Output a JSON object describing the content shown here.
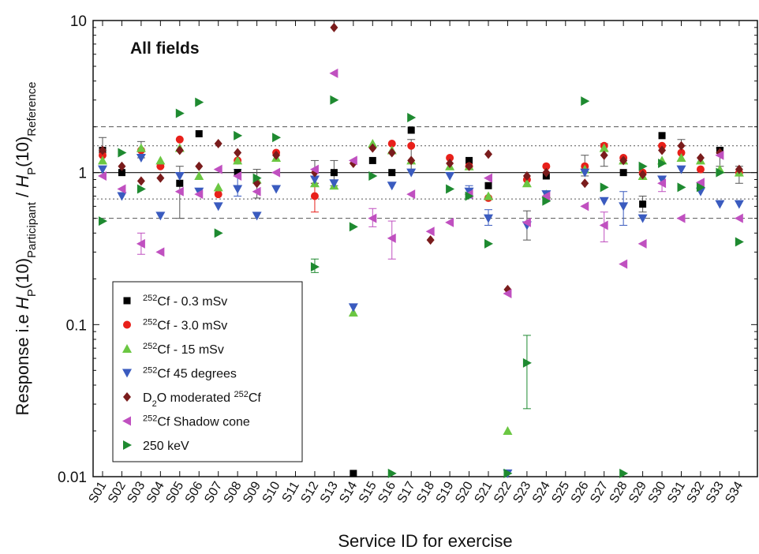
{
  "chart_data": {
    "type": "scatter",
    "title": "All fields",
    "xlabel": "Service ID for exercise",
    "ylabel_parts": [
      "Response i.e ",
      "H",
      "P",
      "(10)",
      "Participant",
      " / ",
      "H",
      "P",
      "(10)",
      "Reference"
    ],
    "yscale": "log",
    "ylim": [
      0.01,
      10
    ],
    "yticks": [
      {
        "v": 0.01,
        "label": "0.01"
      },
      {
        "v": 0.1,
        "label": "0.1"
      },
      {
        "v": 1,
        "label": "1"
      },
      {
        "v": 10,
        "label": "10"
      }
    ],
    "categories": [
      "S01",
      "S02",
      "S03",
      "S04",
      "S05",
      "S06",
      "S07",
      "S08",
      "S09",
      "S10",
      "S11",
      "S12",
      "S13",
      "S14",
      "S15",
      "S16",
      "S17",
      "S18",
      "S19",
      "S20",
      "S21",
      "S22",
      "S23",
      "S24",
      "S25",
      "S26",
      "S27",
      "S28",
      "S29",
      "S30",
      "S31",
      "S32",
      "S33",
      "S34"
    ],
    "reference_lines": [
      {
        "y": 1,
        "style": "solid"
      },
      {
        "y": 1.5,
        "style": "dotted"
      },
      {
        "y": 0.67,
        "style": "dotted"
      },
      {
        "y": 2,
        "style": "dashed"
      },
      {
        "y": 0.5,
        "style": "dashed"
      }
    ],
    "legend_position": "bottom-left",
    "series": [
      {
        "label_sup": "252",
        "label": "Cf  - 0.3 mSv",
        "color": "#000000",
        "marker": "square",
        "offset": 0,
        "points": [
          [
            "S01",
            1.4
          ],
          [
            "S02",
            1.0
          ],
          [
            "S05",
            0.85
          ],
          [
            "S06",
            1.8
          ],
          [
            "S08",
            1.0
          ],
          [
            "S13",
            1.0
          ],
          [
            "S14",
            0.0105
          ],
          [
            "S15",
            1.2
          ],
          [
            "S16",
            1.0
          ],
          [
            "S17",
            1.9
          ],
          [
            "S20",
            1.2
          ],
          [
            "S21",
            0.82
          ],
          [
            "S24",
            0.95
          ],
          [
            "S28",
            1.0
          ],
          [
            "S29",
            0.62
          ],
          [
            "S30",
            1.75
          ],
          [
            "S33",
            1.4
          ]
        ]
      },
      {
        "label_sup": "252",
        "label": "Cf - 3.0 mSv",
        "color": "#e8201a",
        "marker": "circle",
        "offset": 0,
        "points": [
          [
            "S01",
            1.3
          ],
          [
            "S03",
            1.4
          ],
          [
            "S04",
            1.1
          ],
          [
            "S05",
            1.65
          ],
          [
            "S07",
            0.72
          ],
          [
            "S08",
            1.2
          ],
          [
            "S10",
            1.35
          ],
          [
            "S12",
            0.7
          ],
          [
            "S16",
            1.55
          ],
          [
            "S17",
            1.5
          ],
          [
            "S19",
            1.25
          ],
          [
            "S20",
            1.1
          ],
          [
            "S21",
            0.68
          ],
          [
            "S23",
            0.9
          ],
          [
            "S24",
            1.1
          ],
          [
            "S26",
            1.1
          ],
          [
            "S27",
            1.5
          ],
          [
            "S28",
            1.25
          ],
          [
            "S29",
            1.0
          ],
          [
            "S30",
            1.5
          ],
          [
            "S31",
            1.35
          ],
          [
            "S32",
            1.05
          ],
          [
            "S34",
            1.0
          ]
        ]
      },
      {
        "label_sup": "252",
        "label": "Cf - 15 mSv",
        "color": "#6bc742",
        "marker": "triangle-up",
        "offset": 0,
        "points": [
          [
            "S01",
            1.2
          ],
          [
            "S03",
            1.45
          ],
          [
            "S04",
            1.2
          ],
          [
            "S05",
            1.45
          ],
          [
            "S06",
            0.95
          ],
          [
            "S07",
            0.8
          ],
          [
            "S08",
            1.2
          ],
          [
            "S09",
            0.9
          ],
          [
            "S10",
            1.25
          ],
          [
            "S12",
            0.85
          ],
          [
            "S13",
            0.82
          ],
          [
            "S14",
            0.12
          ],
          [
            "S15",
            1.55
          ],
          [
            "S16",
            1.4
          ],
          [
            "S17",
            1.2
          ],
          [
            "S19",
            1.1
          ],
          [
            "S20",
            1.1
          ],
          [
            "S21",
            0.7
          ],
          [
            "S22",
            0.02
          ],
          [
            "S23",
            0.85
          ],
          [
            "S24",
            0.72
          ],
          [
            "S26",
            1.05
          ],
          [
            "S27",
            1.45
          ],
          [
            "S28",
            1.2
          ],
          [
            "S29",
            0.95
          ],
          [
            "S30",
            1.2
          ],
          [
            "S31",
            1.25
          ],
          [
            "S32",
            1.2
          ],
          [
            "S33",
            1.05
          ],
          [
            "S34",
            1.0
          ]
        ]
      },
      {
        "label_sup": "252",
        "label": "Cf 45 degrees",
        "color": "#3a5bbf",
        "marker": "triangle-down",
        "offset": 0,
        "points": [
          [
            "S01",
            1.05
          ],
          [
            "S02",
            0.7
          ],
          [
            "S03",
            1.25
          ],
          [
            "S04",
            0.52
          ],
          [
            "S05",
            0.95
          ],
          [
            "S06",
            0.75
          ],
          [
            "S07",
            0.6
          ],
          [
            "S08",
            0.78
          ],
          [
            "S09",
            0.52
          ],
          [
            "S10",
            0.78
          ],
          [
            "S12",
            0.9
          ],
          [
            "S13",
            0.85
          ],
          [
            "S14",
            0.13
          ],
          [
            "S16",
            0.82
          ],
          [
            "S17",
            1.0
          ],
          [
            "S19",
            0.95
          ],
          [
            "S20",
            0.75
          ],
          [
            "S21",
            0.5
          ],
          [
            "S22",
            0.0105
          ],
          [
            "S23",
            0.45
          ],
          [
            "S24",
            0.72
          ],
          [
            "S26",
            1.0
          ],
          [
            "S27",
            0.65
          ],
          [
            "S28",
            0.6
          ],
          [
            "S29",
            0.5
          ],
          [
            "S30",
            0.9
          ],
          [
            "S31",
            1.05
          ],
          [
            "S32",
            0.75
          ],
          [
            "S33",
            0.62
          ],
          [
            "S34",
            0.62
          ]
        ]
      },
      {
        "label_sup": "",
        "label": "D2O moderated 252Cf",
        "color": "#7a1c1c",
        "marker": "diamond",
        "offset": 0,
        "points": [
          [
            "S01",
            1.4
          ],
          [
            "S02",
            1.1
          ],
          [
            "S03",
            0.88
          ],
          [
            "S04",
            0.92
          ],
          [
            "S05",
            1.4
          ],
          [
            "S06",
            1.1
          ],
          [
            "S07",
            1.55
          ],
          [
            "S08",
            1.35
          ],
          [
            "S09",
            0.85
          ],
          [
            "S10",
            1.3
          ],
          [
            "S12",
            1.0
          ],
          [
            "S13",
            9.0
          ],
          [
            "S14",
            1.15
          ],
          [
            "S15",
            1.45
          ],
          [
            "S16",
            1.35
          ],
          [
            "S17",
            1.2
          ],
          [
            "S18",
            0.36
          ],
          [
            "S19",
            1.15
          ],
          [
            "S20",
            1.1
          ],
          [
            "S21",
            1.32
          ],
          [
            "S22",
            0.17
          ],
          [
            "S23",
            0.95
          ],
          [
            "S24",
            1.0
          ],
          [
            "S26",
            0.85
          ],
          [
            "S27",
            1.3
          ],
          [
            "S28",
            1.2
          ],
          [
            "S29",
            0.97
          ],
          [
            "S30",
            1.4
          ],
          [
            "S31",
            1.5
          ],
          [
            "S32",
            1.25
          ],
          [
            "S33",
            1.35
          ],
          [
            "S34",
            1.05
          ]
        ]
      },
      {
        "label_sup": "252",
        "label": "Cf Shadow cone",
        "color": "#c050c0",
        "marker": "triangle-left",
        "offset": 0,
        "points": [
          [
            "S01",
            0.95
          ],
          [
            "S02",
            0.78
          ],
          [
            "S03",
            0.34
          ],
          [
            "S04",
            0.3
          ],
          [
            "S05",
            0.75
          ],
          [
            "S06",
            0.72
          ],
          [
            "S07",
            1.05
          ],
          [
            "S08",
            0.95
          ],
          [
            "S09",
            0.75
          ],
          [
            "S10",
            1.0
          ],
          [
            "S12",
            1.05
          ],
          [
            "S13",
            4.5
          ],
          [
            "S14",
            1.2
          ],
          [
            "S15",
            0.5
          ],
          [
            "S16",
            0.37
          ],
          [
            "S17",
            0.72
          ],
          [
            "S18",
            0.41
          ],
          [
            "S19",
            0.47
          ],
          [
            "S20",
            0.72
          ],
          [
            "S21",
            0.92
          ],
          [
            "S22",
            0.16
          ],
          [
            "S23",
            0.47
          ],
          [
            "S24",
            0.7
          ],
          [
            "S26",
            0.6
          ],
          [
            "S27",
            0.45
          ],
          [
            "S28",
            0.25
          ],
          [
            "S29",
            0.34
          ],
          [
            "S30",
            0.85
          ],
          [
            "S31",
            0.5
          ],
          [
            "S32",
            0.86
          ],
          [
            "S33",
            1.3
          ],
          [
            "S34",
            0.5
          ]
        ]
      },
      {
        "label_sup": "",
        "label": "250 keV",
        "color": "#1e8a30",
        "marker": "triangle-right",
        "offset": 0,
        "points": [
          [
            "S01",
            0.48
          ],
          [
            "S02",
            1.35
          ],
          [
            "S03",
            0.78
          ],
          [
            "S05",
            2.45
          ],
          [
            "S06",
            2.9
          ],
          [
            "S07",
            0.4
          ],
          [
            "S08",
            1.75
          ],
          [
            "S09",
            0.92
          ],
          [
            "S10",
            1.7
          ],
          [
            "S12",
            0.24
          ],
          [
            "S13",
            3.0
          ],
          [
            "S14",
            0.44
          ],
          [
            "S15",
            0.95
          ],
          [
            "S16",
            0.0105
          ],
          [
            "S17",
            2.3
          ],
          [
            "S19",
            0.78
          ],
          [
            "S20",
            0.7
          ],
          [
            "S21",
            0.34
          ],
          [
            "S22",
            0.0105
          ],
          [
            "S23",
            0.056
          ],
          [
            "S24",
            0.65
          ],
          [
            "S26",
            2.95
          ],
          [
            "S27",
            0.8
          ],
          [
            "S28",
            0.0105
          ],
          [
            "S29",
            1.1
          ],
          [
            "S30",
            1.15
          ],
          [
            "S31",
            0.8
          ],
          [
            "S32",
            0.8
          ],
          [
            "S33",
            1.0
          ],
          [
            "S34",
            0.35
          ]
        ]
      }
    ],
    "legend_items": [
      {
        "sup": "252",
        "text": "Cf  - 0.3 mSv"
      },
      {
        "sup": "252",
        "text": "Cf - 3.0 mSv"
      },
      {
        "sup": "252",
        "text": "Cf - 15 mSv"
      },
      {
        "sup": "252",
        "text": "Cf 45 degrees"
      },
      {
        "pre": "D",
        "sub": "2",
        "mid": "O moderated ",
        "sup": "252",
        "text": "Cf"
      },
      {
        "sup": "252",
        "text": "Cf Shadow cone"
      },
      {
        "text": "250 keV"
      }
    ],
    "error_bars": [
      {
        "cat": "S01",
        "y": 1.4,
        "lo": 1.15,
        "hi": 1.7,
        "color": "#555555"
      },
      {
        "cat": "S03",
        "y": 1.4,
        "lo": 1.25,
        "hi": 1.6,
        "color": "#555555"
      },
      {
        "cat": "S03",
        "y": 0.34,
        "lo": 0.29,
        "hi": 0.4,
        "color": "#c050c0"
      },
      {
        "cat": "S05",
        "y": 0.85,
        "lo": 0.5,
        "hi": 1.1,
        "color": "#555555"
      },
      {
        "cat": "S08",
        "y": 0.78,
        "lo": 0.7,
        "hi": 1.05,
        "color": "#3a5bbf"
      },
      {
        "cat": "S09",
        "y": 0.9,
        "lo": 0.68,
        "hi": 1.05,
        "color": "#555555"
      },
      {
        "cat": "S12",
        "y": 0.7,
        "lo": 0.55,
        "hi": 0.85,
        "color": "#e8201a"
      },
      {
        "cat": "S12",
        "y": 1.05,
        "lo": 0.85,
        "hi": 1.2,
        "color": "#555555"
      },
      {
        "cat": "S12",
        "y": 0.24,
        "lo": 0.22,
        "hi": 0.27,
        "color": "#1e8a30"
      },
      {
        "cat": "S13",
        "y": 1.0,
        "lo": 0.82,
        "hi": 1.2,
        "color": "#555555"
      },
      {
        "cat": "S15",
        "y": 0.5,
        "lo": 0.44,
        "hi": 0.58,
        "color": "#c050c0"
      },
      {
        "cat": "S16",
        "y": 0.37,
        "lo": 0.27,
        "hi": 0.48,
        "color": "#c050c0"
      },
      {
        "cat": "S17",
        "y": 1.5,
        "lo": 1.0,
        "hi": 1.65,
        "color": "#555555"
      },
      {
        "cat": "S20",
        "y": 0.75,
        "lo": 0.68,
        "hi": 0.82,
        "color": "#3a5bbf"
      },
      {
        "cat": "S21",
        "y": 0.5,
        "lo": 0.45,
        "hi": 0.57,
        "color": "#3a5bbf"
      },
      {
        "cat": "S23",
        "y": 0.056,
        "lo": 0.028,
        "hi": 0.085,
        "color": "#1e8a30"
      },
      {
        "cat": "S23",
        "y": 0.45,
        "lo": 0.36,
        "hi": 0.56,
        "color": "#555555"
      },
      {
        "cat": "S26",
        "y": 1.1,
        "lo": 0.95,
        "hi": 1.3,
        "color": "#555555"
      },
      {
        "cat": "S27",
        "y": 0.45,
        "lo": 0.35,
        "hi": 0.55,
        "color": "#c050c0"
      },
      {
        "cat": "S27",
        "y": 1.3,
        "lo": 1.1,
        "hi": 1.55,
        "color": "#555555"
      },
      {
        "cat": "S28",
        "y": 0.6,
        "lo": 0.45,
        "hi": 0.75,
        "color": "#3a5bbf"
      },
      {
        "cat": "S29",
        "y": 0.62,
        "lo": 0.55,
        "hi": 0.7,
        "color": "#555555"
      },
      {
        "cat": "S30",
        "y": 0.85,
        "lo": 0.75,
        "hi": 0.95,
        "color": "#c050c0"
      },
      {
        "cat": "S31",
        "y": 1.35,
        "lo": 1.2,
        "hi": 1.65,
        "color": "#555555"
      },
      {
        "cat": "S33",
        "y": 1.3,
        "lo": 1.1,
        "hi": 1.45,
        "color": "#555555"
      },
      {
        "cat": "S34",
        "y": 1.0,
        "lo": 0.85,
        "hi": 1.1,
        "color": "#555555"
      }
    ]
  }
}
